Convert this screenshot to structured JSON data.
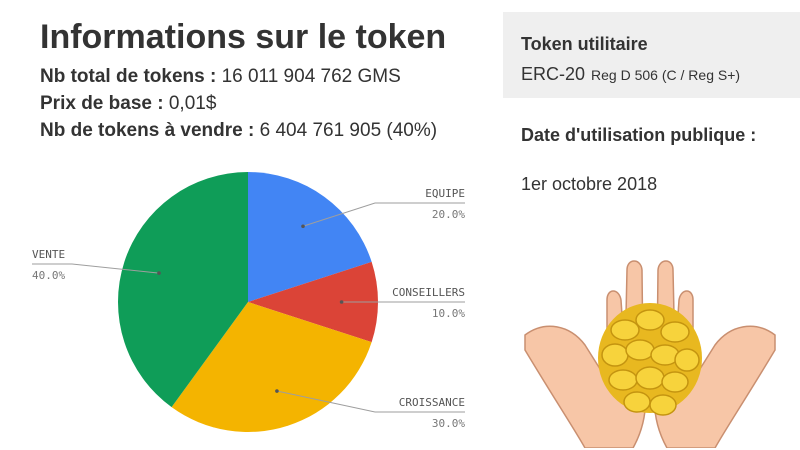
{
  "header": {
    "title": "Informations sur le token",
    "lines": [
      {
        "label": "Nb total de tokens :",
        "value": "16 011 904 762 GMS"
      },
      {
        "label": "Prix de base :",
        "value": "0,01$"
      },
      {
        "label": "Nb de tokens à vendre :",
        "value": "6 404 761 905 (40%)"
      }
    ]
  },
  "token_box": {
    "type_label": "Token utilitaire",
    "standard": "ERC-20",
    "regulation": "Reg D 506 (C / Reg S+)"
  },
  "date": {
    "title": "Date d'utilisation publique :",
    "value": "1er octobre 2018"
  },
  "chart_data": {
    "type": "pie",
    "slices": [
      {
        "label": "EQUIPE",
        "value": 20.0,
        "pct_label": "20.0%",
        "color": "#4285f4"
      },
      {
        "label": "CONSEILLERS",
        "value": 10.0,
        "pct_label": "10.0%",
        "color": "#db4437"
      },
      {
        "label": "CROISSANCE",
        "value": 30.0,
        "pct_label": "30.0%",
        "color": "#f4b400"
      },
      {
        "label": "VENTE",
        "value": 40.0,
        "pct_label": "40.0%",
        "color": "#0f9d58"
      }
    ]
  },
  "illustration": {
    "icon": "hands-holding-coins-icon"
  }
}
